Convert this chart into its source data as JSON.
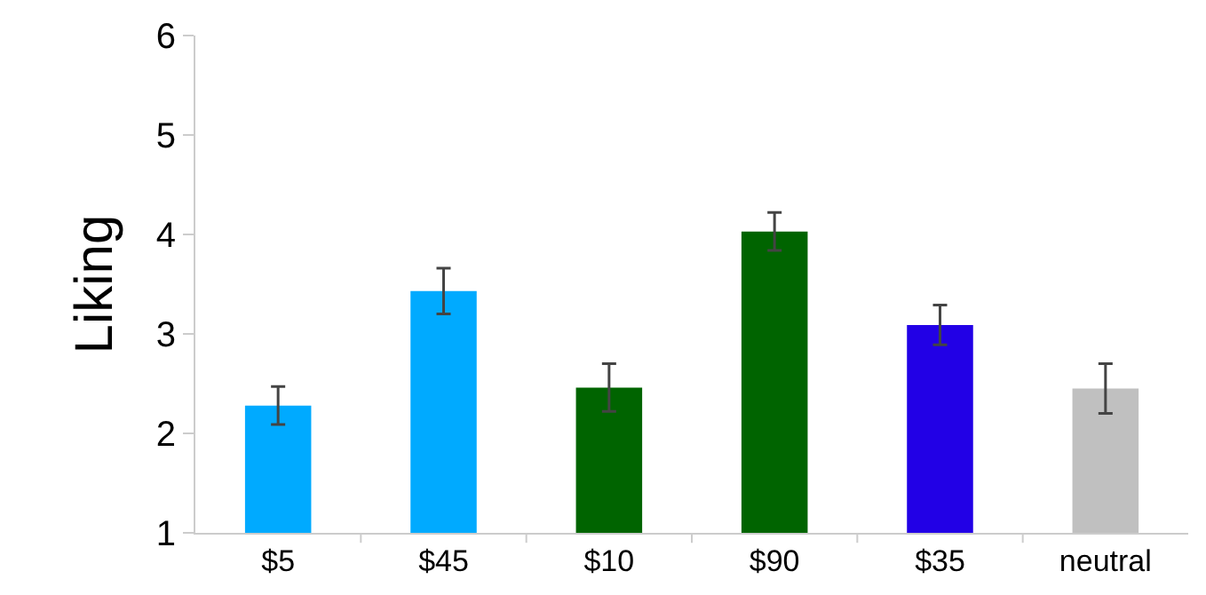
{
  "chart_data": {
    "type": "bar",
    "ylabel": "Liking",
    "categories": [
      "$5",
      "$45",
      "$10",
      "$90",
      "$35",
      "neutral"
    ],
    "values": [
      2.28,
      3.43,
      2.46,
      4.03,
      3.09,
      2.45
    ],
    "errors": [
      0.19,
      0.23,
      0.24,
      0.19,
      0.2,
      0.25
    ],
    "colors": [
      "#00aaff",
      "#00aaff",
      "#006400",
      "#006400",
      "#2200e6",
      "#c0c0c0"
    ],
    "ylim": [
      1,
      6
    ],
    "yticks": [
      1,
      2,
      3,
      4,
      5,
      6
    ]
  }
}
